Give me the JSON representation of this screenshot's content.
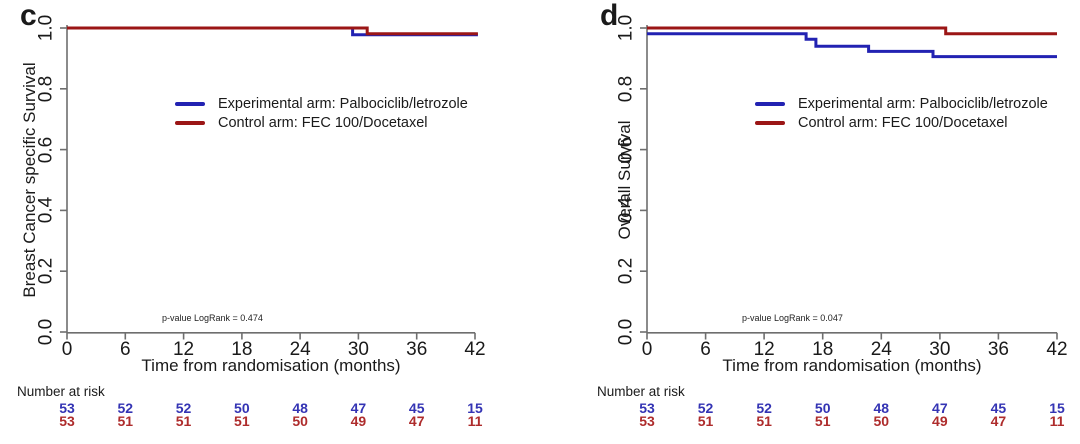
{
  "figure": {
    "background": "#ffffff",
    "axis_color": "#6e6e6e",
    "text_color": "#1a1a1a"
  },
  "chart_data": [
    {
      "type": "line",
      "subtype": "kaplan_meier_step",
      "panel_letter": "c",
      "ylabel": "Breast Cancer specific Survival",
      "xlabel": "Time from randomisation (months)",
      "xlim": [
        0,
        42
      ],
      "ylim": [
        0.0,
        1.0
      ],
      "x_ticks": [
        0,
        6,
        12,
        18,
        24,
        30,
        36,
        42
      ],
      "y_ticks": [
        0.0,
        0.2,
        0.4,
        0.6,
        0.8,
        1.0
      ],
      "grid": false,
      "legend_position": "center-left-of-plot",
      "annotation": "p-value LogRank = 0.474",
      "series": [
        {
          "name": "Experimental arm: Palbociclib/letrozole",
          "color": "#2222b2",
          "steps": [
            [
              0,
              1.0
            ],
            [
              29.4,
              0.978
            ],
            [
              42.3,
              0.978
            ]
          ]
        },
        {
          "name": "Control arm: FEC 100/Docetaxel",
          "color": "#9b1616",
          "steps": [
            [
              0,
              1.0
            ],
            [
              30.9,
              0.981
            ],
            [
              42.3,
              0.981
            ]
          ]
        }
      ],
      "number_at_risk": {
        "label": "Number at risk",
        "times": [
          0,
          6,
          12,
          18,
          24,
          30,
          36,
          42
        ],
        "rows": [
          {
            "name": "Experimental arm",
            "color": "#3434b4",
            "values": [
              53,
              52,
              52,
              50,
              48,
              47,
              45,
              15
            ]
          },
          {
            "name": "Control arm",
            "color": "#ae2c2c",
            "values": [
              53,
              51,
              51,
              51,
              50,
              49,
              47,
              11
            ]
          }
        ]
      }
    },
    {
      "type": "line",
      "subtype": "kaplan_meier_step",
      "panel_letter": "d",
      "ylabel": "Overall Survival",
      "xlabel": "Time from randomisation (months)",
      "xlim": [
        0,
        42
      ],
      "ylim": [
        0.0,
        1.0
      ],
      "x_ticks": [
        0,
        6,
        12,
        18,
        24,
        30,
        36,
        42
      ],
      "y_ticks": [
        0.0,
        0.2,
        0.4,
        0.6,
        0.8,
        1.0
      ],
      "grid": false,
      "legend_position": "center-left-of-plot",
      "annotation": "p-value LogRank = 0.047",
      "series": [
        {
          "name": "Experimental arm: Palbociclib/letrozole",
          "color": "#2222b2",
          "steps": [
            [
              0,
              0.981
            ],
            [
              16.3,
              0.963
            ],
            [
              17.3,
              0.94
            ],
            [
              22.7,
              0.923
            ],
            [
              29.3,
              0.906
            ],
            [
              42,
              0.906
            ]
          ]
        },
        {
          "name": "Control arm: FEC 100/Docetaxel",
          "color": "#9b1616",
          "steps": [
            [
              0,
              1.0
            ],
            [
              30.6,
              0.981
            ],
            [
              42,
              0.981
            ]
          ]
        }
      ],
      "number_at_risk": {
        "label": "Number at risk",
        "times": [
          0,
          6,
          12,
          18,
          24,
          30,
          36,
          42
        ],
        "rows": [
          {
            "name": "Experimental arm",
            "color": "#3434b4",
            "values": [
              53,
              52,
              52,
              50,
              48,
              47,
              45,
              15
            ]
          },
          {
            "name": "Control arm",
            "color": "#ae2c2c",
            "values": [
              53,
              51,
              51,
              51,
              50,
              49,
              47,
              11
            ]
          }
        ]
      }
    }
  ]
}
